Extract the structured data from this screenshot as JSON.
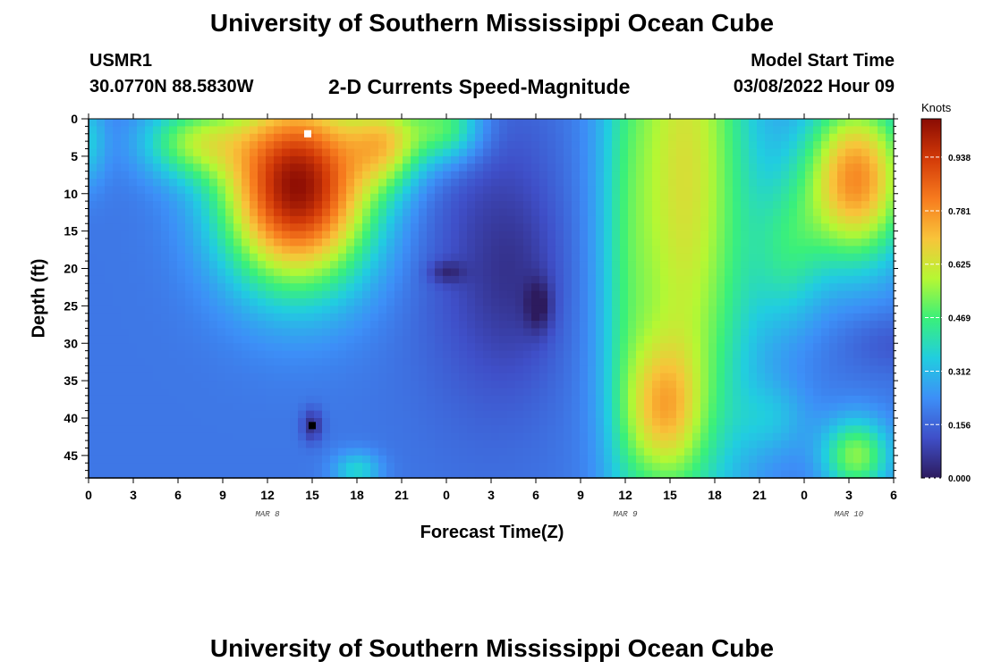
{
  "header": {
    "title": "University of Southern Mississippi Ocean Cube",
    "station": "USMR1",
    "coords": "30.0770N  88.5830W",
    "subtitle": "2-D Currents Speed-Magnitude",
    "model_start_label": "Model Start Time",
    "model_start_value": "03/08/2022 Hour 09"
  },
  "footer": {
    "title": "University of Southern Mississippi Ocean Cube"
  },
  "colors": {
    "scale": [
      "#2d1b5e",
      "#3f4fc8",
      "#3d8ff7",
      "#21cde0",
      "#3af07a",
      "#b6f733",
      "#f8c43a",
      "#f77b1e",
      "#d33a08",
      "#8a0b03"
    ]
  },
  "chart_data": {
    "type": "heatmap",
    "title": "2-D Currents Speed-Magnitude",
    "xlabel": "Forecast Time(Z)",
    "ylabel": "Depth (ft)",
    "unit": "Knots",
    "x_ticks": [
      "0",
      "3",
      "6",
      "9",
      "12",
      "15",
      "18",
      "21",
      "0",
      "3",
      "6",
      "9",
      "12",
      "15",
      "18",
      "21",
      "0",
      "3",
      "6"
    ],
    "x_range_hours": [
      0,
      54
    ],
    "date_labels": [
      {
        "label": "MAR 8",
        "hour": 12
      },
      {
        "label": "MAR 9",
        "hour": 36
      },
      {
        "label": "MAR 10",
        "hour": 51
      }
    ],
    "y_ticks": [
      0,
      5,
      10,
      15,
      20,
      25,
      30,
      35,
      40,
      45
    ],
    "y_range": [
      0,
      48
    ],
    "colorbar_ticks": [
      "0.000",
      "0.156",
      "0.312",
      "0.469",
      "0.625",
      "0.781",
      "0.938"
    ],
    "colorbar_range": [
      0,
      1.05
    ],
    "markers": [
      {
        "hour": 14.7,
        "depth": 2,
        "color": "#ffffff"
      },
      {
        "hour": 15.0,
        "depth": 41,
        "color": "#000000"
      }
    ],
    "field": {
      "background": 0.19,
      "features": [
        {
          "hour": 14,
          "depth": 9,
          "sx": 5.0,
          "sy": 13,
          "amp": 0.85
        },
        {
          "hour": 7,
          "depth": 3,
          "sx": 3.5,
          "sy": 5,
          "amp": 0.3
        },
        {
          "hour": 20,
          "depth": 3,
          "sx": 2.5,
          "sy": 6,
          "amp": 0.35
        },
        {
          "hour": 24,
          "depth": 1,
          "sx": 2.5,
          "sy": 5,
          "amp": 0.3
        },
        {
          "hour": 0,
          "depth": 3,
          "sx": 1.2,
          "sy": 6,
          "amp": 0.15
        },
        {
          "hour": 27,
          "depth": 18,
          "sx": 5,
          "sy": 22,
          "amp": -0.1
        },
        {
          "hour": 29,
          "depth": 22,
          "sx": 3,
          "sy": 12,
          "amp": -0.05
        },
        {
          "hour": 24,
          "depth": 20.5,
          "sx": 1.2,
          "sy": 1.5,
          "amp": -0.1
        },
        {
          "hour": 30.2,
          "depth": 25,
          "sx": 0.9,
          "sy": 3.5,
          "amp": -0.12
        },
        {
          "hour": 15,
          "depth": 41,
          "sx": 0.7,
          "sy": 2.2,
          "amp": -0.15
        },
        {
          "hour": 18,
          "depth": 47,
          "sx": 1.6,
          "sy": 2.5,
          "amp": 0.18
        },
        {
          "hour": 40,
          "depth": 8,
          "sx": 4.5,
          "sy": 45,
          "amp": 0.45
        },
        {
          "hour": 36,
          "depth": 24,
          "sx": 1.8,
          "sy": 40,
          "amp": 0.1
        },
        {
          "hour": 38.5,
          "depth": 39,
          "sx": 2.5,
          "sy": 9,
          "amp": 0.3
        },
        {
          "hour": 51.5,
          "depth": 8,
          "sx": 3.5,
          "sy": 11,
          "amp": 0.6
        },
        {
          "hour": 47,
          "depth": 18,
          "sx": 2.5,
          "sy": 10,
          "amp": 0.18
        },
        {
          "hour": 51.5,
          "depth": 45,
          "sx": 2.3,
          "sy": 5,
          "amp": 0.35
        },
        {
          "hour": 46,
          "depth": 40,
          "sx": 2.5,
          "sy": 5,
          "amp": 0.1
        },
        {
          "hour": 54,
          "depth": 30,
          "sx": 3.5,
          "sy": 4,
          "amp": -0.06
        }
      ]
    }
  }
}
